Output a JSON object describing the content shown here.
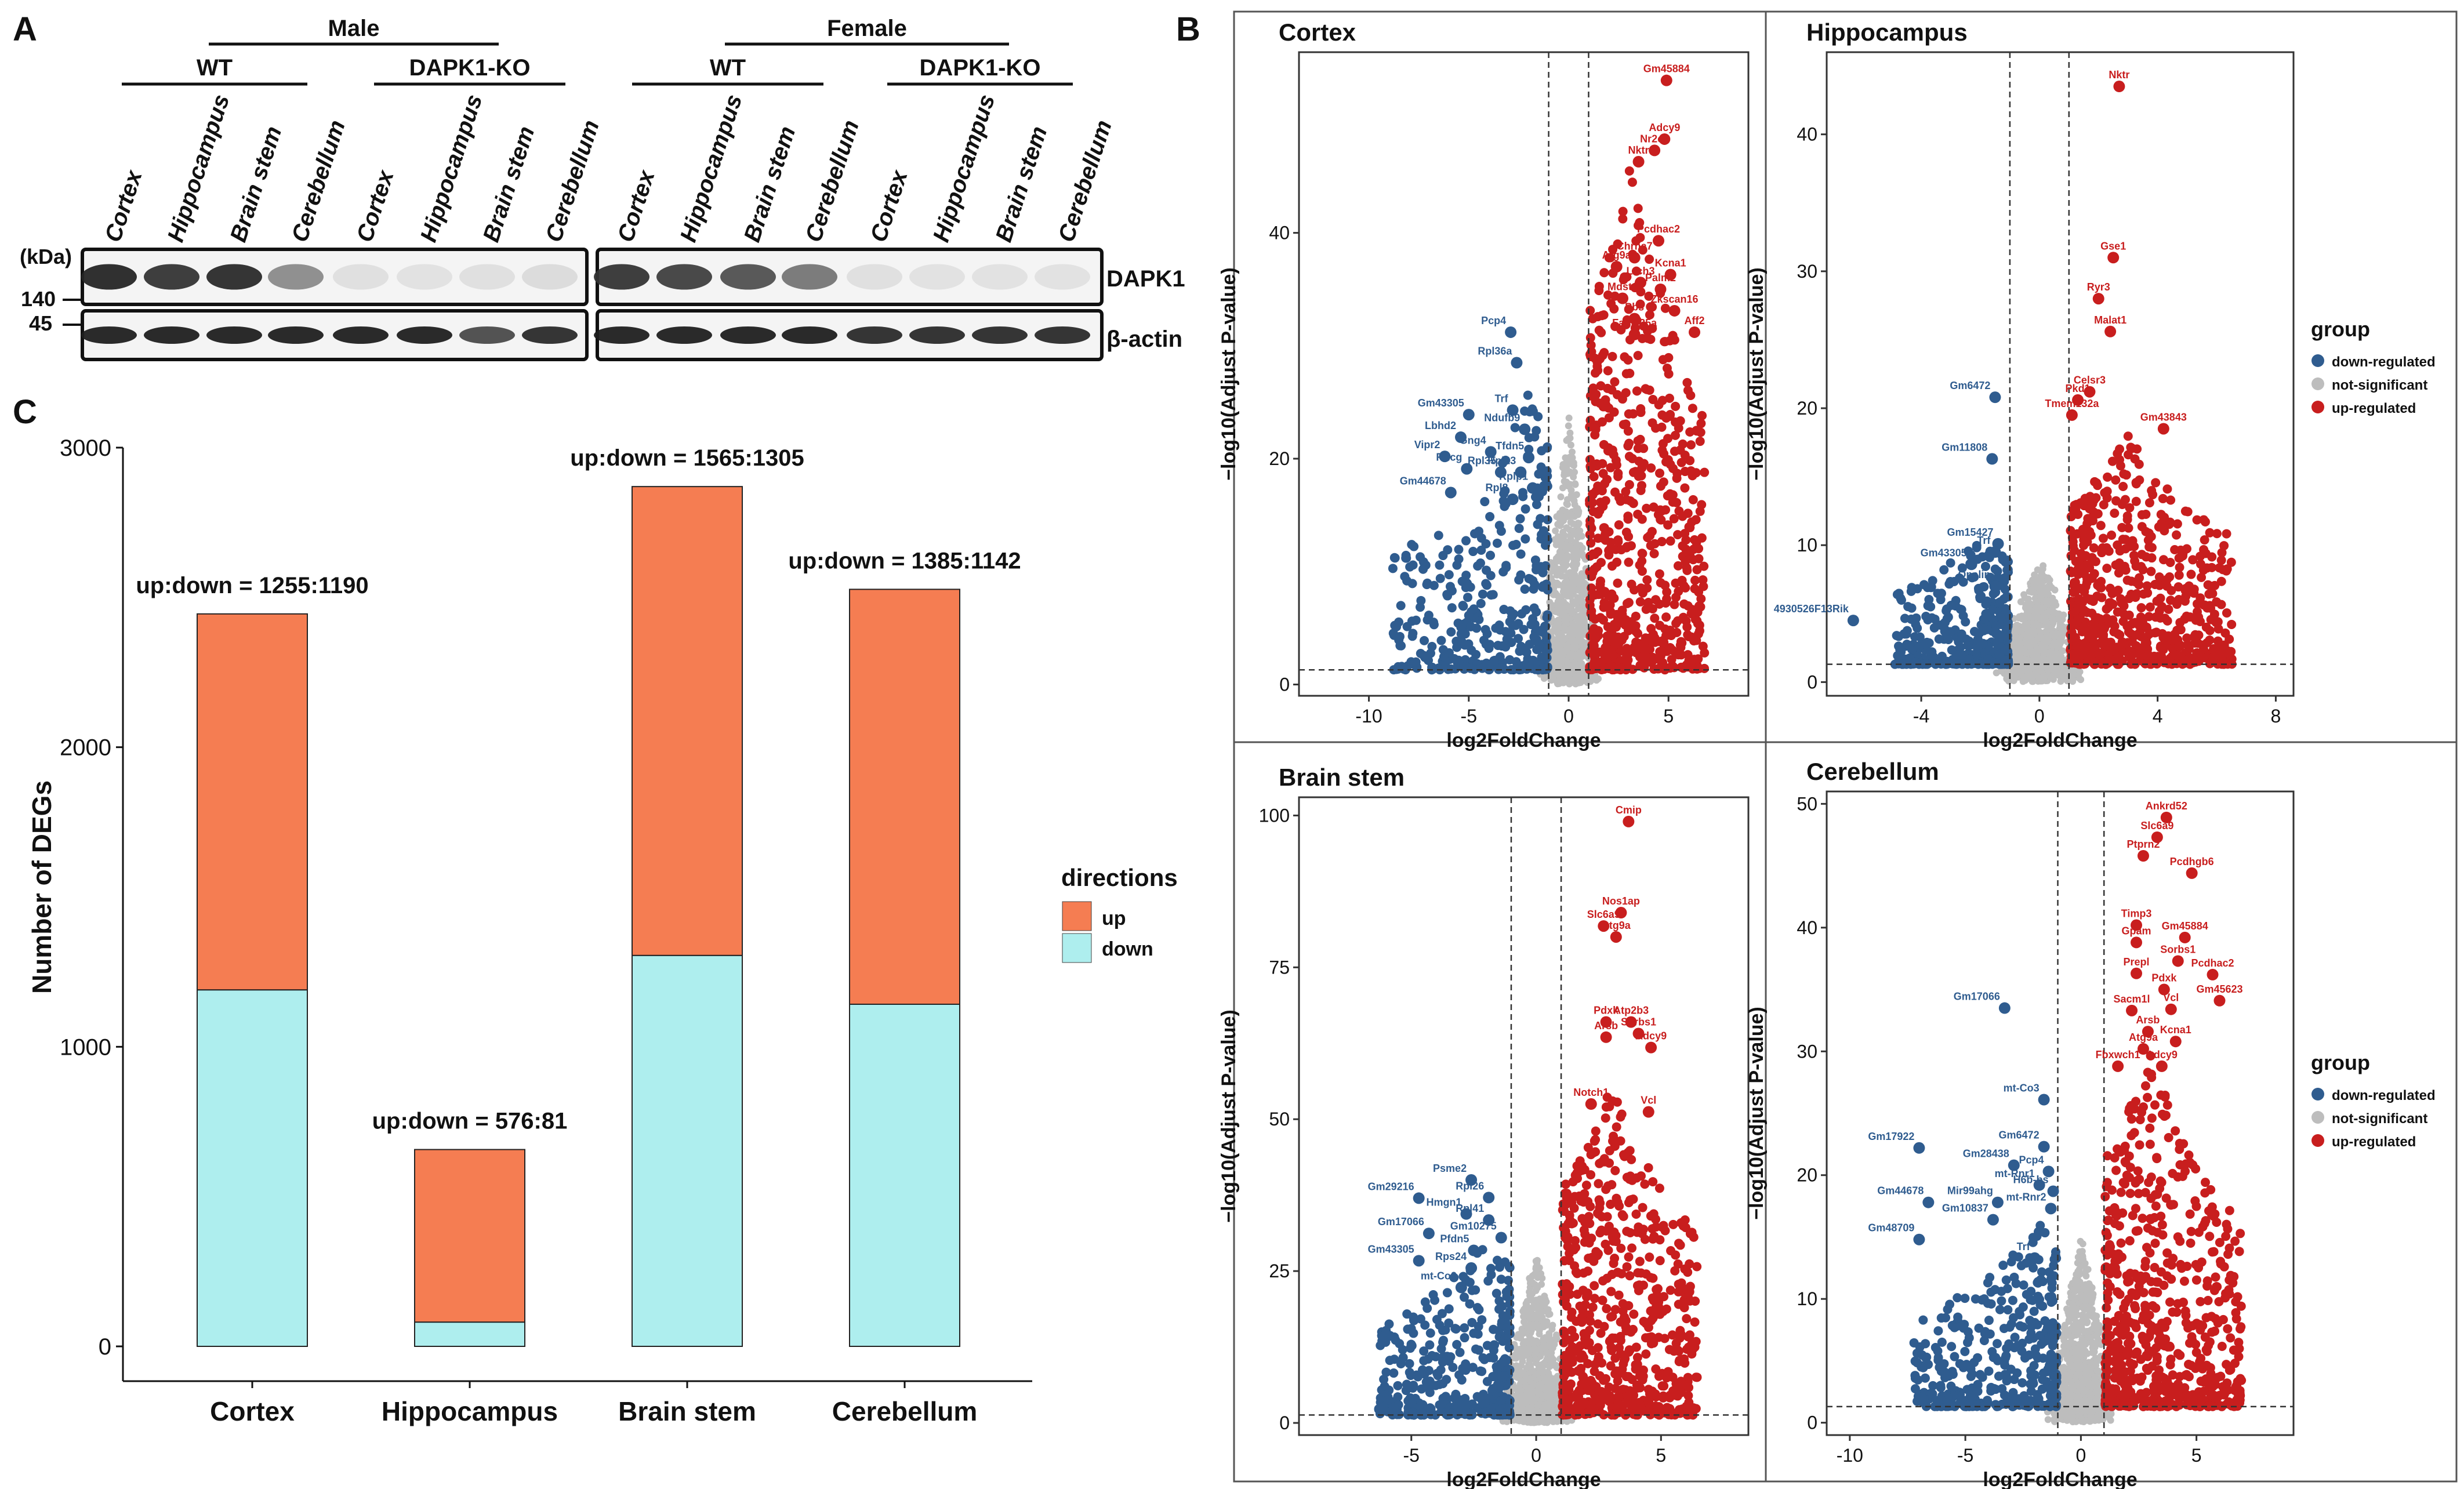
{
  "figure": {
    "panel_labels": [
      "A",
      "B",
      "C"
    ],
    "western_blot": {
      "sex_groups": [
        "Male",
        "Female"
      ],
      "genotypes": [
        "WT",
        "DAPK1-KO"
      ],
      "regions": [
        "Cortex",
        "Hippocampus",
        "Brain stem",
        "Cerebellum"
      ],
      "kda_label": "(kDa)",
      "marker_140": "140",
      "marker_45": "45",
      "band_labels": [
        "DAPK1",
        "β-actin"
      ],
      "dapk1_intensity_male": [
        0.92,
        0.85,
        0.9,
        0.45,
        0.06,
        0.05,
        0.06,
        0.08
      ],
      "dapk1_intensity_female": [
        0.85,
        0.8,
        0.72,
        0.55,
        0.06,
        0.05,
        0.05,
        0.05
      ],
      "actin_intensity_male": [
        0.95,
        0.95,
        0.95,
        0.95,
        0.95,
        0.95,
        0.75,
        0.9
      ],
      "actin_intensity_female": [
        0.95,
        0.95,
        0.95,
        0.95,
        0.9,
        0.9,
        0.9,
        0.9
      ]
    },
    "legend_group": {
      "title": "group",
      "items": [
        {
          "label": "down-regulated",
          "color": "#2f5c8f"
        },
        {
          "label": "not-significant",
          "color": "#bdbdbd"
        },
        {
          "label": "up-regulated",
          "color": "#c81e1e"
        }
      ]
    },
    "legend_directions": {
      "title": "directions",
      "items": [
        {
          "label": "up",
          "color": "#f57d52"
        },
        {
          "label": "down",
          "color": "#aeeeee"
        }
      ]
    }
  },
  "chart_data": [
    {
      "type": "bar",
      "stacked": true,
      "categories": [
        "Cortex",
        "Hippocampus",
        "Brain stem",
        "Cerebellum"
      ],
      "series": [
        {
          "name": "down",
          "values": [
            1190,
            81,
            1305,
            1142
          ],
          "color": "#aeeeee"
        },
        {
          "name": "up",
          "values": [
            1255,
            576,
            1565,
            1385
          ],
          "color": "#f57d52"
        }
      ],
      "annotations": [
        "up:down = 1255:1190",
        "up:down = 576:81",
        "up:down = 1565:1305",
        "up:down = 1385:1142"
      ],
      "ylabel": "Number of DEGs",
      "ylim": [
        0,
        3000
      ],
      "yticks": [
        0,
        1000,
        2000,
        3000
      ],
      "legend_title": "directions"
    },
    {
      "type": "scatter",
      "title": "Cortex",
      "xlabel": "log2FoldChange",
      "ylabel": "−log10(Adjust P-value)",
      "xlim": [
        -13.5,
        9
      ],
      "ylim": [
        -1,
        56
      ],
      "xticks": [
        -10,
        -5,
        0,
        5
      ],
      "yticks": [
        0,
        20,
        40
      ],
      "thresholds": {
        "x": [
          -1,
          1
        ],
        "y": 1.3
      },
      "max_y": 46,
      "seed": 11,
      "labeled_points": [
        {
          "label": "Gm45884",
          "x": 4.9,
          "y": 53.5,
          "group": "up"
        },
        {
          "label": "Adcy9",
          "x": 4.8,
          "y": 48.3,
          "group": "up"
        },
        {
          "label": "Nr2c2",
          "x": 4.3,
          "y": 47.3,
          "group": "up"
        },
        {
          "label": "Nktr",
          "x": 3.5,
          "y": 46.3,
          "group": "up"
        },
        {
          "label": "Pcdhac2",
          "x": 4.5,
          "y": 39.3,
          "group": "up"
        },
        {
          "label": "Chrna7",
          "x": 3.3,
          "y": 37.8,
          "group": "up"
        },
        {
          "label": "Atg9a",
          "x": 2.4,
          "y": 37.0,
          "group": "up"
        },
        {
          "label": "Kcna1",
          "x": 5.1,
          "y": 36.3,
          "group": "up"
        },
        {
          "label": "Lrch3",
          "x": 3.6,
          "y": 35.6,
          "group": "up"
        },
        {
          "label": "Palm2",
          "x": 4.6,
          "y": 35.0,
          "group": "up"
        },
        {
          "label": "Mdst1",
          "x": 2.7,
          "y": 34.2,
          "group": "up"
        },
        {
          "label": "Zkscan16",
          "x": 5.3,
          "y": 33.1,
          "group": "up"
        },
        {
          "label": "Pbs",
          "x": 3.3,
          "y": 32.4,
          "group": "up"
        },
        {
          "label": "Fam135a",
          "x": 3.3,
          "y": 31.0,
          "group": "up"
        },
        {
          "label": "Aff2",
          "x": 6.3,
          "y": 31.2,
          "group": "up"
        },
        {
          "label": "Pcp4",
          "x": -2.9,
          "y": 31.2,
          "group": "down"
        },
        {
          "label": "Rpl36a",
          "x": -2.6,
          "y": 28.5,
          "group": "down"
        },
        {
          "label": "Gm43305",
          "x": -5.0,
          "y": 23.9,
          "group": "down"
        },
        {
          "label": "Trf",
          "x": -2.8,
          "y": 24.3,
          "group": "down"
        },
        {
          "label": "Ndufb9",
          "x": -2.2,
          "y": 22.6,
          "group": "down"
        },
        {
          "label": "Lbhd2",
          "x": -5.4,
          "y": 21.9,
          "group": "down"
        },
        {
          "label": "Vipr2",
          "x": -6.2,
          "y": 20.2,
          "group": "down"
        },
        {
          "label": "Gng4",
          "x": -3.9,
          "y": 20.6,
          "group": "down"
        },
        {
          "label": "Tfdn5",
          "x": -2.0,
          "y": 20.1,
          "group": "down"
        },
        {
          "label": "Rhcg",
          "x": -5.1,
          "y": 19.1,
          "group": "down"
        },
        {
          "label": "Rpl35",
          "x": -3.4,
          "y": 18.8,
          "group": "down"
        },
        {
          "label": "Rpl23",
          "x": -2.4,
          "y": 18.8,
          "group": "down"
        },
        {
          "label": "Rplp1",
          "x": -1.8,
          "y": 17.4,
          "group": "down"
        },
        {
          "label": "Gm44678",
          "x": -5.9,
          "y": 17.0,
          "group": "down"
        },
        {
          "label": "Rpl8",
          "x": -2.8,
          "y": 16.4,
          "group": "down"
        }
      ]
    },
    {
      "type": "scatter",
      "title": "Hippocampus",
      "xlabel": "log2FoldChange",
      "ylabel": "−log10(Adjust P-value)",
      "xlim": [
        -7.2,
        8.6
      ],
      "ylim": [
        -1,
        46
      ],
      "xticks": [
        -4,
        0,
        4,
        8
      ],
      "yticks": [
        0,
        10,
        20,
        30,
        40
      ],
      "thresholds": {
        "x": [
          -1,
          1
        ],
        "y": 1.3
      },
      "max_y": 17,
      "seed": 23,
      "labeled_points": [
        {
          "label": "Nktr",
          "x": 2.7,
          "y": 43.5,
          "group": "up"
        },
        {
          "label": "Gse1",
          "x": 2.5,
          "y": 31.0,
          "group": "up"
        },
        {
          "label": "Ryr3",
          "x": 2.0,
          "y": 28.0,
          "group": "up"
        },
        {
          "label": "Malat1",
          "x": 2.4,
          "y": 25.6,
          "group": "up"
        },
        {
          "label": "Celsr3",
          "x": 1.7,
          "y": 21.2,
          "group": "up"
        },
        {
          "label": "Pkd1",
          "x": 1.3,
          "y": 20.6,
          "group": "up"
        },
        {
          "label": "Tmem132a",
          "x": 1.1,
          "y": 19.5,
          "group": "up"
        },
        {
          "label": "Gm43843",
          "x": 4.2,
          "y": 18.5,
          "group": "up"
        },
        {
          "label": "Gm6472",
          "x": -1.5,
          "y": 20.8,
          "group": "down"
        },
        {
          "label": "Gm11808",
          "x": -1.6,
          "y": 16.3,
          "group": "down"
        },
        {
          "label": "Gm15427",
          "x": -1.4,
          "y": 10.1,
          "group": "down"
        },
        {
          "label": "Trf",
          "x": -1.5,
          "y": 9.5,
          "group": "down"
        },
        {
          "label": "Gm43305",
          "x": -2.3,
          "y": 8.6,
          "group": "down"
        },
        {
          "label": "Opalin",
          "x": -1.5,
          "y": 7.0,
          "group": "down"
        },
        {
          "label": "4930526F13Rik",
          "x": -6.3,
          "y": 4.5,
          "group": "down"
        }
      ]
    },
    {
      "type": "scatter",
      "title": "Brain stem",
      "xlabel": "log2FoldChange",
      "ylabel": "−log10(Adjust P-value)",
      "xlim": [
        -9.5,
        8.5
      ],
      "ylim": [
        -2,
        103
      ],
      "xticks": [
        -5,
        0,
        5
      ],
      "yticks": [
        0,
        25,
        50,
        75,
        100
      ],
      "thresholds": {
        "x": [
          -1,
          1
        ],
        "y": 1.3
      },
      "max_y": 55,
      "seed": 37,
      "labeled_points": [
        {
          "label": "Cmip",
          "x": 3.7,
          "y": 99.0,
          "group": "up"
        },
        {
          "label": "Nos1ap",
          "x": 3.4,
          "y": 84.0,
          "group": "up"
        },
        {
          "label": "Slc6a9",
          "x": 2.7,
          "y": 81.8,
          "group": "up"
        },
        {
          "label": "Atg9a",
          "x": 3.2,
          "y": 80.0,
          "group": "up"
        },
        {
          "label": "Pdxk",
          "x": 2.8,
          "y": 66.0,
          "group": "up"
        },
        {
          "label": "Atp2b3",
          "x": 3.8,
          "y": 66.0,
          "group": "up"
        },
        {
          "label": "Sorbs1",
          "x": 4.1,
          "y": 64.1,
          "group": "up"
        },
        {
          "label": "Arsb",
          "x": 2.8,
          "y": 63.5,
          "group": "up"
        },
        {
          "label": "Adcy9",
          "x": 4.6,
          "y": 61.8,
          "group": "up"
        },
        {
          "label": "Notch1",
          "x": 2.2,
          "y": 52.5,
          "group": "up"
        },
        {
          "label": "Vcl",
          "x": 4.5,
          "y": 51.2,
          "group": "up"
        },
        {
          "label": "Psme2",
          "x": -2.6,
          "y": 40.0,
          "group": "down"
        },
        {
          "label": "Gm29216",
          "x": -4.7,
          "y": 37.0,
          "group": "down"
        },
        {
          "label": "Rpl26",
          "x": -1.9,
          "y": 37.1,
          "group": "down"
        },
        {
          "label": "Hmgn1",
          "x": -2.8,
          "y": 34.4,
          "group": "down"
        },
        {
          "label": "Rpl41",
          "x": -1.9,
          "y": 33.4,
          "group": "down"
        },
        {
          "label": "Gm17066",
          "x": -4.3,
          "y": 31.2,
          "group": "down"
        },
        {
          "label": "Gm10275",
          "x": -1.4,
          "y": 30.5,
          "group": "down"
        },
        {
          "label": "Pfdn5",
          "x": -2.5,
          "y": 28.4,
          "group": "down"
        },
        {
          "label": "Gm43305",
          "x": -4.7,
          "y": 26.7,
          "group": "down"
        },
        {
          "label": "Rps24",
          "x": -2.6,
          "y": 25.5,
          "group": "down"
        },
        {
          "label": "mt-Co2",
          "x": -3.0,
          "y": 22.3,
          "group": "down"
        }
      ]
    },
    {
      "type": "scatter",
      "title": "Cerebellum",
      "xlabel": "log2FoldChange",
      "ylabel": "−log10(Adjust P-value)",
      "xlim": [
        -11,
        9.2
      ],
      "ylim": [
        -1,
        51
      ],
      "xticks": [
        -10,
        -5,
        0,
        5
      ],
      "yticks": [
        0,
        10,
        20,
        30,
        40,
        50
      ],
      "thresholds": {
        "x": [
          -1,
          1
        ],
        "y": 1.3
      },
      "max_y": 29,
      "seed": 53,
      "labeled_points": [
        {
          "label": "Ankrd52",
          "x": 3.7,
          "y": 48.9,
          "group": "up"
        },
        {
          "label": "Slc6a9",
          "x": 3.3,
          "y": 47.3,
          "group": "up"
        },
        {
          "label": "Ptprn2",
          "x": 2.7,
          "y": 45.8,
          "group": "up"
        },
        {
          "label": "Pcdhgb6",
          "x": 4.8,
          "y": 44.4,
          "group": "up"
        },
        {
          "label": "Timp3",
          "x": 2.4,
          "y": 40.2,
          "group": "up"
        },
        {
          "label": "Gm45884",
          "x": 4.5,
          "y": 39.2,
          "group": "up"
        },
        {
          "label": "Gpam",
          "x": 2.4,
          "y": 38.8,
          "group": "up"
        },
        {
          "label": "Sorbs1",
          "x": 4.2,
          "y": 37.3,
          "group": "up"
        },
        {
          "label": "Pcdhac2",
          "x": 5.7,
          "y": 36.2,
          "group": "up"
        },
        {
          "label": "Prepl",
          "x": 2.4,
          "y": 36.3,
          "group": "up"
        },
        {
          "label": "Pdxk",
          "x": 3.6,
          "y": 35.0,
          "group": "up"
        },
        {
          "label": "Gm45623",
          "x": 6.0,
          "y": 34.1,
          "group": "up"
        },
        {
          "label": "Sacm1l",
          "x": 2.2,
          "y": 33.3,
          "group": "up"
        },
        {
          "label": "Vcl",
          "x": 3.9,
          "y": 33.4,
          "group": "up"
        },
        {
          "label": "Arsb",
          "x": 2.9,
          "y": 31.6,
          "group": "up"
        },
        {
          "label": "Kcna1",
          "x": 4.1,
          "y": 30.8,
          "group": "up"
        },
        {
          "label": "Atg9a",
          "x": 2.7,
          "y": 30.2,
          "group": "up"
        },
        {
          "label": "Fbxwch1",
          "x": 1.6,
          "y": 28.8,
          "group": "up"
        },
        {
          "label": "Adcy9",
          "x": 3.5,
          "y": 28.8,
          "group": "up"
        },
        {
          "label": "Gm17066",
          "x": -3.3,
          "y": 33.5,
          "group": "down"
        },
        {
          "label": "mt-Co3",
          "x": -1.6,
          "y": 26.1,
          "group": "down"
        },
        {
          "label": "Gm6472",
          "x": -1.6,
          "y": 22.3,
          "group": "down"
        },
        {
          "label": "Gm17922",
          "x": -7.0,
          "y": 22.2,
          "group": "down"
        },
        {
          "label": "Gm28438",
          "x": -2.9,
          "y": 20.8,
          "group": "down"
        },
        {
          "label": "Pcp4",
          "x": -1.4,
          "y": 20.3,
          "group": "down"
        },
        {
          "label": "mt-Rnr1",
          "x": -1.8,
          "y": 19.2,
          "group": "down"
        },
        {
          "label": "H6b-bs",
          "x": -1.2,
          "y": 18.7,
          "group": "down"
        },
        {
          "label": "Gm44678",
          "x": -6.6,
          "y": 17.8,
          "group": "down"
        },
        {
          "label": "Mir99ahg",
          "x": -3.6,
          "y": 17.8,
          "group": "down"
        },
        {
          "label": "mt-Rnr2",
          "x": -1.3,
          "y": 17.3,
          "group": "down"
        },
        {
          "label": "Gm10837",
          "x": -3.8,
          "y": 16.4,
          "group": "down"
        },
        {
          "label": "Gm48709",
          "x": -7.0,
          "y": 14.8,
          "group": "down"
        },
        {
          "label": "Trf",
          "x": -2.0,
          "y": 13.3,
          "group": "down"
        }
      ]
    }
  ]
}
